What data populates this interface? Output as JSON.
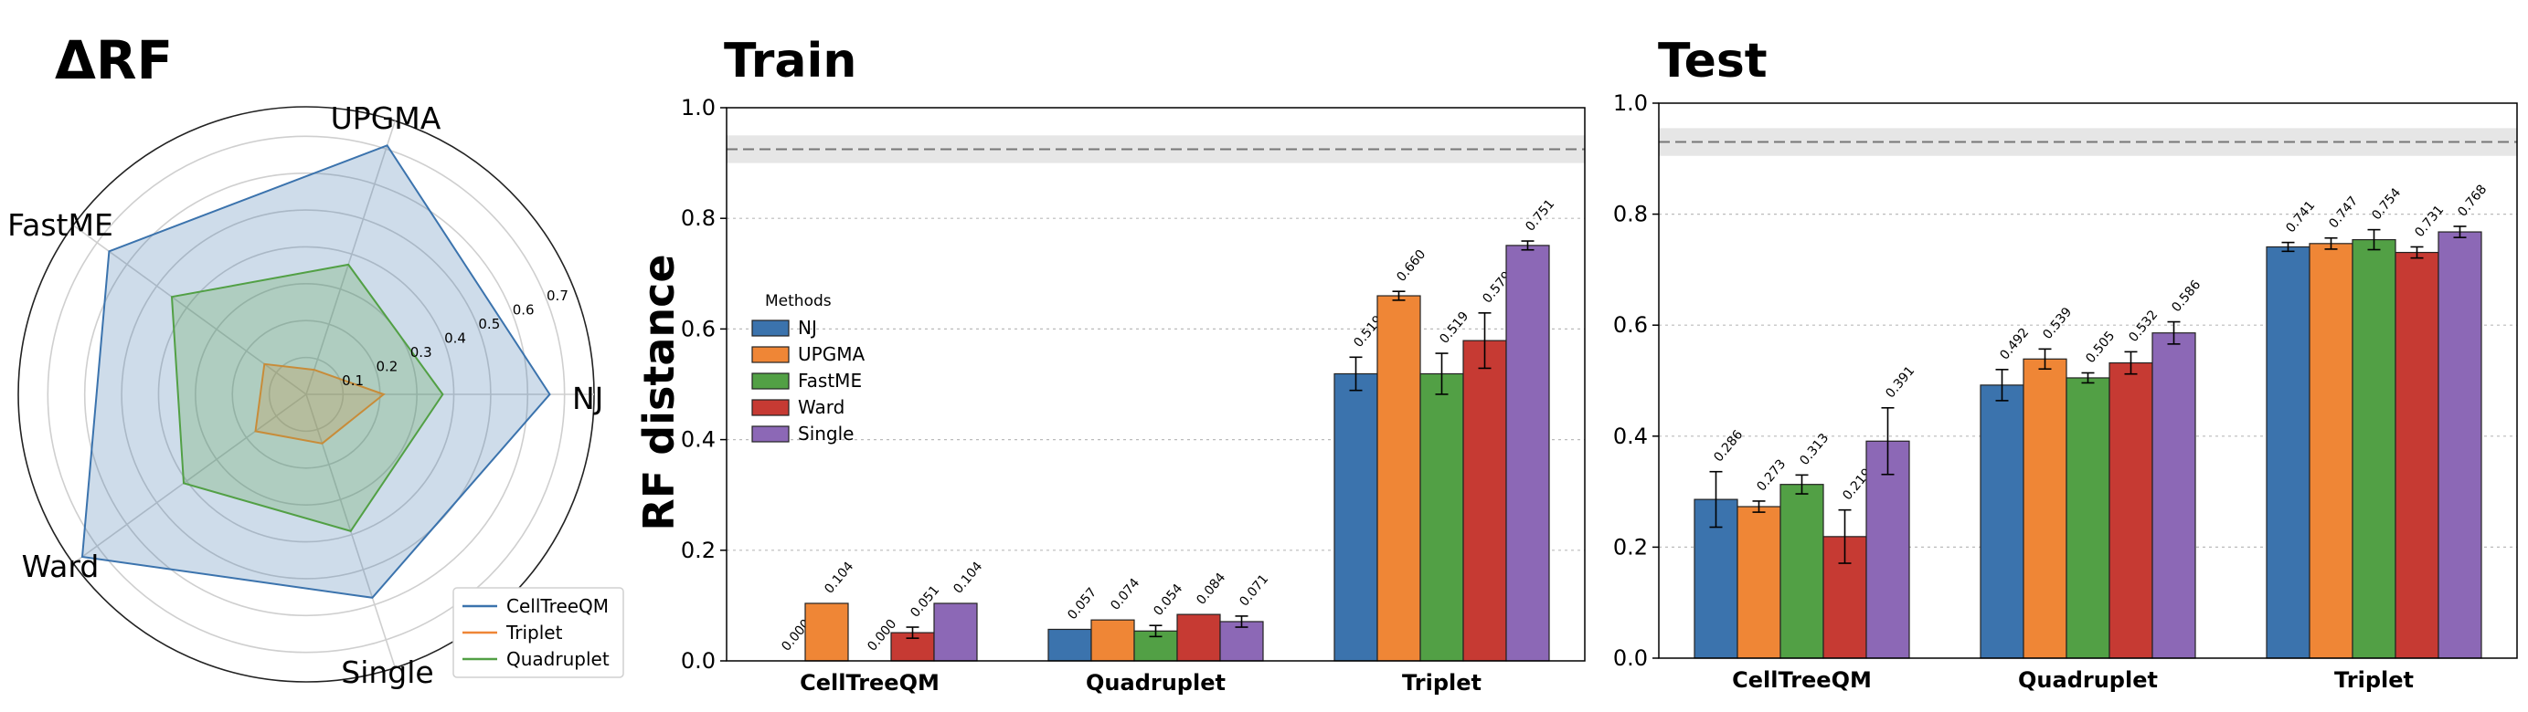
{
  "figure": {
    "radar_title": "ΔRF",
    "train_title": "Train",
    "test_title": "Test",
    "shared_ylabel": "RF distance"
  },
  "chart_data": [
    {
      "type": "radar",
      "title": "ΔRF",
      "axes": [
        "NJ",
        "UPGMA",
        "FastME",
        "Ward",
        "Single"
      ],
      "rmax": 0.78,
      "ticks": [
        0.1,
        0.2,
        0.3,
        0.4,
        0.5,
        0.6,
        0.7
      ],
      "series": [
        {
          "name": "CellTreeQM",
          "values": [
            0.66,
            0.71,
            0.66,
            0.75,
            0.58
          ],
          "color": "#3b73ad"
        },
        {
          "name": "Triplet",
          "values": [
            0.21,
            0.07,
            0.14,
            0.17,
            0.14
          ],
          "color": "#ef8636"
        },
        {
          "name": "Quadruplet",
          "values": [
            0.37,
            0.37,
            0.45,
            0.41,
            0.39
          ],
          "color": "#52a045"
        }
      ],
      "legend_position": "lower-right",
      "grid": true
    },
    {
      "type": "bar",
      "title": "Train",
      "ylabel": "RF distance",
      "categories": [
        "CellTreeQM",
        "Quadruplet",
        "Triplet"
      ],
      "ylim": [
        0,
        1.0
      ],
      "yticks": [
        0.0,
        0.2,
        0.4,
        0.6,
        0.8,
        1.0
      ],
      "reference_line": {
        "value": 0.925,
        "band": [
          0.9,
          0.95
        ]
      },
      "legend": {
        "title": "Methods",
        "position": "center-left"
      },
      "series": [
        {
          "name": "NJ",
          "color": "#3b73ad",
          "values": [
            0.0,
            0.057,
            0.519
          ],
          "errors": [
            0,
            0,
            0.03
          ],
          "labels": [
            "0.000",
            "0.057",
            "0.519"
          ]
        },
        {
          "name": "UPGMA",
          "color": "#ef8636",
          "values": [
            0.104,
            0.074,
            0.66
          ],
          "errors": [
            0,
            0,
            0.008
          ],
          "labels": [
            "0.104",
            "0.074",
            "0.660"
          ]
        },
        {
          "name": "FastME",
          "color": "#52a045",
          "values": [
            0.0,
            0.054,
            0.519
          ],
          "errors": [
            0,
            0.01,
            0.037
          ],
          "labels": [
            "0.000",
            "0.054",
            "0.519"
          ]
        },
        {
          "name": "Ward",
          "color": "#c63a33",
          "values": [
            0.051,
            0.084,
            0.579
          ],
          "errors": [
            0.01,
            0,
            0.05
          ],
          "labels": [
            "0.051",
            "0.084",
            "0.579"
          ]
        },
        {
          "name": "Single",
          "color": "#8c68b6",
          "values": [
            0.104,
            0.071,
            0.751
          ],
          "errors": [
            0,
            0.01,
            0.008
          ],
          "labels": [
            "0.104",
            "0.071",
            "0.751"
          ]
        }
      ],
      "grid": true
    },
    {
      "type": "bar",
      "title": "Test",
      "categories": [
        "CellTreeQM",
        "Quadruplet",
        "Triplet"
      ],
      "ylim": [
        0,
        1.0
      ],
      "yticks": [
        0.0,
        0.2,
        0.4,
        0.6,
        0.8,
        1.0
      ],
      "reference_line": {
        "value": 0.93,
        "band": [
          0.905,
          0.955
        ]
      },
      "series": [
        {
          "name": "NJ",
          "color": "#3b73ad",
          "values": [
            0.286,
            0.492,
            0.741
          ],
          "errors": [
            0.05,
            0.028,
            0.008
          ],
          "labels": [
            "0.286",
            "0.492",
            "0.741"
          ]
        },
        {
          "name": "UPGMA",
          "color": "#ef8636",
          "values": [
            0.273,
            0.539,
            0.747
          ],
          "errors": [
            0.01,
            0.018,
            0.01
          ],
          "labels": [
            "0.273",
            "0.539",
            "0.747"
          ]
        },
        {
          "name": "FastME",
          "color": "#52a045",
          "values": [
            0.313,
            0.505,
            0.754
          ],
          "errors": [
            0.017,
            0.009,
            0.018
          ],
          "labels": [
            "0.313",
            "0.505",
            "0.754"
          ]
        },
        {
          "name": "Ward",
          "color": "#c63a33",
          "values": [
            0.219,
            0.532,
            0.731
          ],
          "errors": [
            0.048,
            0.02,
            0.01
          ],
          "labels": [
            "0.219",
            "0.532",
            "0.731"
          ]
        },
        {
          "name": "Single",
          "color": "#8c68b6",
          "values": [
            0.391,
            0.586,
            0.768
          ],
          "errors": [
            0.06,
            0.02,
            0.01
          ],
          "labels": [
            "0.391",
            "0.586",
            "0.768"
          ]
        }
      ],
      "grid": true
    }
  ]
}
